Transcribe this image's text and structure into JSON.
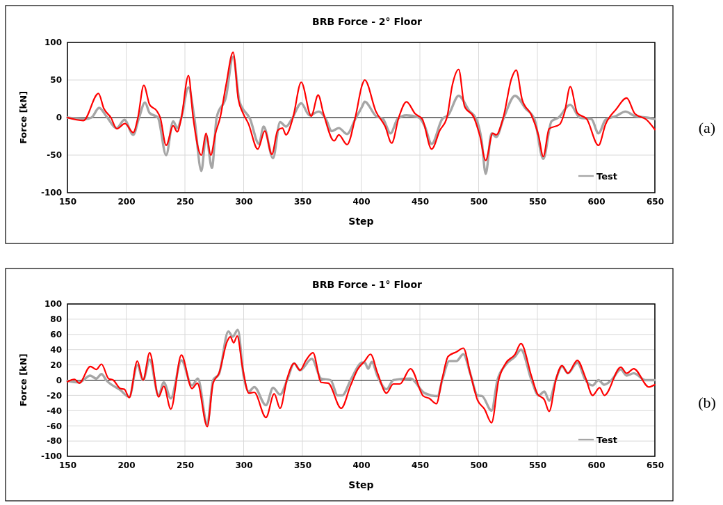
{
  "chart_data": [
    {
      "type": "line",
      "title": "BRB Force - 2° Floor",
      "xlabel": "Step",
      "ylabel": "Force [kN]",
      "xlim": [
        150,
        650
      ],
      "xticks": [
        150,
        200,
        250,
        300,
        350,
        400,
        450,
        500,
        550,
        600,
        650
      ],
      "ylim": [
        -100,
        100
      ],
      "yticks": [
        -100,
        -50,
        0,
        50,
        100
      ],
      "grid": true,
      "legend": "bottom right",
      "marker": "none",
      "line_style": "solid",
      "annotations": [
        "(a)"
      ],
      "series": [
        {
          "name": "Test",
          "color": "#a6a6a6",
          "x": [
            150,
            165,
            170.5,
            177,
            183,
            192,
            198.5,
            206,
            211,
            216,
            220,
            227,
            234,
            240,
            243.5,
            247,
            253,
            258,
            264,
            268,
            273,
            277,
            285,
            291,
            296.5,
            305.5,
            313,
            317,
            325,
            331,
            336,
            341,
            349,
            356,
            364,
            370,
            375,
            381,
            388,
            395,
            401,
            403,
            412.6,
            418.6,
            425,
            431,
            438.6,
            449,
            454,
            460,
            469,
            474,
            483,
            492,
            498,
            502.6,
            506,
            511,
            515,
            521,
            531,
            540,
            547.5,
            555,
            562,
            568,
            578,
            586,
            596,
            602,
            608,
            617,
            625,
            633,
            643,
            650
          ],
          "values": [
            0,
            -2,
            0,
            13,
            2,
            -14,
            -3,
            -23,
            0,
            20,
            6,
            0,
            -50,
            -5,
            -14,
            0,
            40,
            0,
            -71,
            -24,
            -67,
            0,
            28,
            81,
            21,
            -2,
            -35,
            -12,
            -54,
            -6,
            -12,
            -2,
            19,
            3,
            8,
            -2,
            -18,
            -14,
            -22,
            -2,
            15,
            21,
            2,
            -2,
            -21,
            -2,
            3,
            0,
            -11,
            -35,
            -2,
            3,
            29,
            9,
            -2,
            -31,
            -75,
            -21,
            -26,
            -2,
            29,
            12,
            -2,
            -55,
            -5,
            0,
            17,
            0,
            -2,
            -21,
            -3,
            2,
            8,
            2,
            0,
            -2
          ]
        },
        {
          "color": "#ff0000",
          "x": [
            150,
            163.6,
            176.4,
            181,
            187,
            192,
            199,
            206,
            210,
            215,
            220,
            226,
            229,
            234,
            240,
            243.5,
            247,
            253,
            257,
            264,
            268,
            272,
            276,
            280,
            285,
            291,
            295.5,
            299.4,
            304,
            312,
            318,
            324,
            329,
            333,
            336,
            342,
            349,
            357.5,
            363.4,
            368,
            377,
            381,
            388,
            395,
            401,
            403,
            412.6,
            420.5,
            426,
            432,
            438.6,
            446,
            452,
            460,
            467,
            473,
            477.6,
            483,
            488,
            496,
            501,
            506,
            512,
            515,
            521,
            528,
            532,
            537,
            545,
            551,
            555,
            560,
            569,
            573,
            578,
            584,
            592,
            602,
            608,
            617,
            626,
            633,
            643,
            650
          ],
          "values": [
            0,
            -4,
            32,
            12,
            0,
            -15,
            -8,
            -20,
            0,
            43,
            17,
            9,
            0,
            -37,
            -11,
            -19,
            0,
            56,
            0,
            -50,
            -21,
            -50,
            -21,
            0,
            43,
            87,
            24,
            6,
            -8,
            -42,
            -18,
            -49,
            -17,
            -14,
            -23,
            0,
            47,
            2,
            30,
            5,
            -31,
            -23,
            -36,
            0,
            44,
            50,
            8,
            -12,
            -34,
            0,
            21,
            5,
            -2,
            -42,
            -17,
            0,
            43,
            64,
            15,
            0,
            -24,
            -57,
            -21,
            -23,
            0,
            52,
            63,
            24,
            3,
            -24,
            -52,
            -15,
            -9,
            6,
            41,
            6,
            -2,
            -37,
            -9,
            11,
            26,
            5,
            -3,
            -16
          ]
        }
      ]
    },
    {
      "type": "line",
      "title": "BRB Force - 1° Floor",
      "xlabel": "Step",
      "ylabel": "Force [kN]",
      "xlim": [
        150,
        650
      ],
      "xticks": [
        150,
        200,
        250,
        300,
        350,
        400,
        450,
        500,
        550,
        600,
        650
      ],
      "ylim": [
        -100,
        100
      ],
      "yticks": [
        -100,
        -80,
        -60,
        -40,
        -20,
        0,
        20,
        40,
        60,
        80,
        100
      ],
      "grid": true,
      "legend": "bottom right",
      "marker": "none",
      "line_style": "solid",
      "annotations": [
        "(b)"
      ],
      "series": [
        {
          "name": "Test",
          "color": "#a6a6a6",
          "x": [
            150,
            160,
            169.5,
            174.5,
            179,
            183,
            195,
            202.6,
            209.5,
            214.4,
            220,
            227.6,
            232,
            238,
            247,
            256,
            261,
            269,
            274,
            279,
            287,
            290.6,
            295,
            300,
            304.4,
            309,
            319,
            325,
            331,
            337,
            343,
            348,
            358,
            366,
            374,
            380,
            384,
            391,
            401,
            403,
            406,
            409,
            414,
            421.6,
            427.4,
            442,
            454,
            465,
            469,
            475,
            481,
            487,
            493,
            499,
            503,
            511,
            516,
            523,
            531,
            536,
            545,
            551,
            556,
            560,
            565.6,
            571,
            576,
            584,
            591,
            597,
            602,
            607,
            613,
            621,
            626,
            632,
            642,
            650
          ],
          "values": [
            -1,
            -3,
            6,
            2,
            8,
            0,
            -13,
            -22,
            20,
            0,
            27,
            -20,
            -3,
            -24,
            26,
            -7,
            2,
            -58,
            0,
            8,
            64,
            57,
            66,
            5,
            -15,
            -9,
            -33,
            -10,
            -19,
            0,
            22,
            13,
            28,
            2,
            0,
            -20,
            -20,
            0,
            23,
            23,
            15,
            24,
            5,
            -12,
            0,
            2,
            -17,
            -21,
            0,
            25,
            25,
            34,
            8,
            -20,
            -21,
            -40,
            0,
            20,
            31,
            40,
            0,
            -20,
            -15,
            -27,
            0,
            18,
            9,
            23,
            0,
            -7,
            0,
            -6,
            0,
            14,
            6,
            9,
            0,
            0
          ]
        },
        {
          "color": "#ff0000",
          "x": [
            150,
            156,
            160,
            169.5,
            174.5,
            179,
            185,
            189,
            195,
            198.5,
            202.6,
            209.5,
            214.4,
            220,
            227.6,
            232,
            238,
            247,
            256,
            260.6,
            269,
            274,
            279,
            286,
            288.6,
            291.5,
            294.5,
            299,
            304.4,
            309,
            319,
            326,
            331,
            337,
            343,
            348,
            353,
            359,
            366,
            372,
            383,
            391,
            397,
            403,
            408,
            414,
            421.6,
            427.4,
            433,
            442,
            453,
            458,
            464,
            469,
            474,
            481,
            487,
            493,
            499,
            505,
            511,
            517,
            523,
            531,
            536,
            545,
            550,
            556,
            560,
            566,
            571,
            576,
            584,
            591,
            597,
            603,
            607,
            621,
            626,
            632,
            645,
            650
          ],
          "values": [
            -2,
            1,
            -4,
            18,
            14,
            21,
            2,
            0,
            -11,
            -12,
            -23,
            25,
            0,
            36,
            -22,
            -8,
            -38,
            33,
            -11,
            -4,
            -61,
            -4,
            9,
            51,
            57,
            49,
            58,
            17,
            -17,
            -16,
            -49,
            -18,
            -37,
            2,
            22,
            13,
            26,
            36,
            -3,
            -4,
            -37,
            -7,
            14,
            25,
            34,
            9,
            -17,
            -5,
            -5,
            15,
            -21,
            -24,
            -31,
            2,
            31,
            37,
            42,
            8,
            -26,
            -38,
            -56,
            0,
            22,
            34,
            48,
            5,
            -18,
            -26,
            -41,
            2,
            19,
            9,
            26,
            3,
            -20,
            -10,
            -20,
            17,
            9,
            15,
            -9,
            -6
          ]
        }
      ]
    }
  ]
}
